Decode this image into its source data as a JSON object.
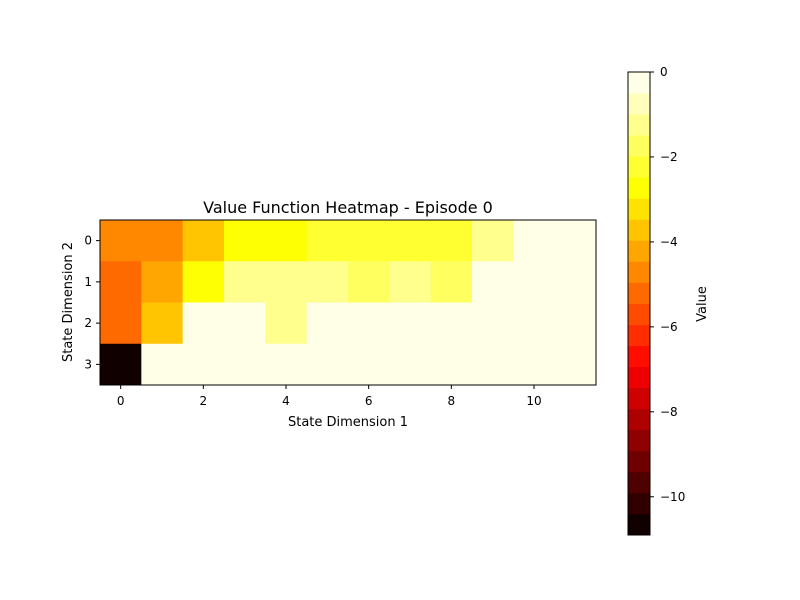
{
  "chart_data": {
    "type": "heatmap",
    "title": "Value Function Heatmap - Episode 0",
    "xlabel": "State Dimension 1",
    "ylabel": "State Dimension 2",
    "xticks": [
      0,
      2,
      4,
      6,
      8,
      10
    ],
    "yticks": [
      0,
      1,
      2,
      3
    ],
    "x_range": [
      -0.5,
      11.5
    ],
    "y_range": [
      -0.5,
      3.5
    ],
    "n_cols": 12,
    "n_rows": 4,
    "values": [
      [
        -4.6,
        -4.6,
        -3.8,
        -2.6,
        -2.6,
        -2.3,
        -2.3,
        -2.3,
        -2.0,
        -1.2,
        0,
        0
      ],
      [
        -5.4,
        -4.2,
        -2.6,
        -1.4,
        -1.4,
        -1.4,
        -1.7,
        -1.4,
        -1.9,
        0,
        0,
        0
      ],
      [
        -5.4,
        -3.8,
        0,
        0,
        -1.3,
        0,
        0,
        0,
        0,
        0,
        0,
        0
      ],
      [
        -10.9,
        0,
        0,
        0,
        0,
        0,
        0,
        0,
        0,
        0,
        0,
        0
      ]
    ],
    "colormap": "hot",
    "colorbar": {
      "label": "Value",
      "range": [
        -10.9,
        0
      ],
      "ticks": [
        0,
        -2,
        -4,
        -6,
        -8,
        -10
      ],
      "tick_labels": [
        "0",
        "−2",
        "−4",
        "−6",
        "−8",
        "−10"
      ],
      "levels": 22
    }
  }
}
